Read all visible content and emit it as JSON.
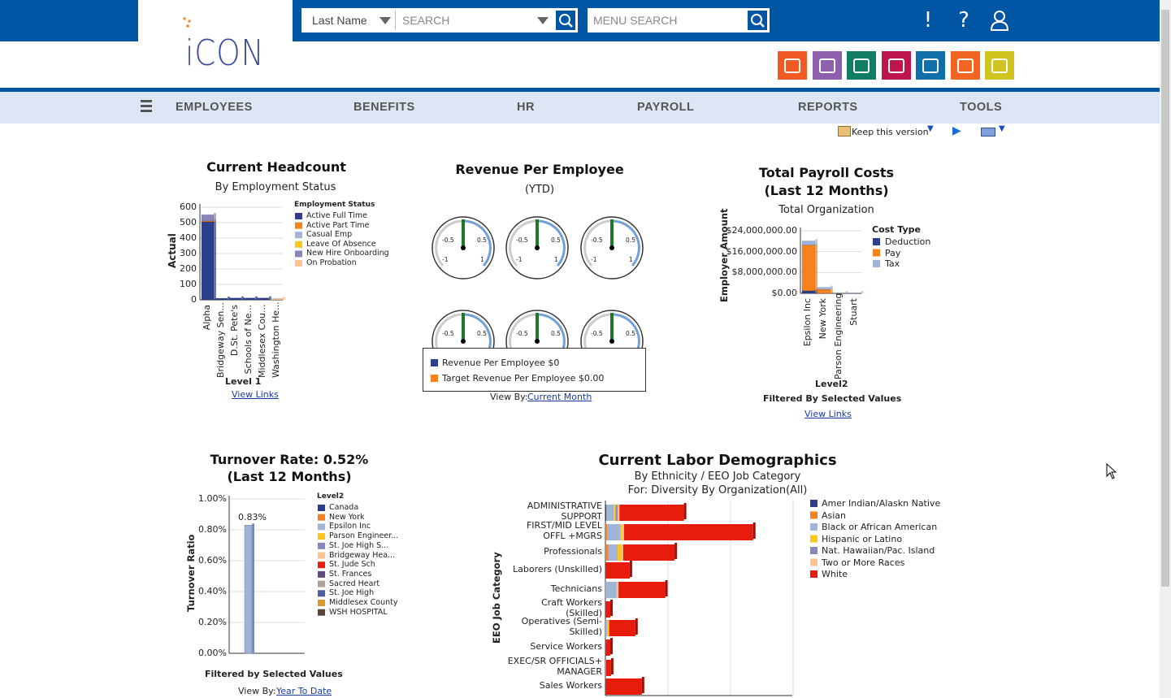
{
  "header": {
    "logo": "iCON",
    "search_type": "Last Name",
    "search_placeholder": "SEARCH",
    "menu_search_placeholder": "MENU SEARCH",
    "icons": [
      "alert-icon",
      "help-icon",
      "user-icon"
    ],
    "apps": [
      {
        "icon": "people-icon",
        "color": "#f15a22"
      },
      {
        "icon": "layers-icon",
        "color": "#8e5fad"
      },
      {
        "icon": "edit-icon",
        "color": "#0f7c64"
      },
      {
        "icon": "checklist-icon",
        "color": "#c0144c"
      },
      {
        "icon": "brain-gears-icon",
        "color": "#0f6fa8"
      },
      {
        "icon": "swoosh-icon",
        "color": "#f26522"
      },
      {
        "icon": "bank-icon",
        "color": "#cfc420"
      }
    ]
  },
  "nav": [
    "EMPLOYEES",
    "BENEFITS",
    "HR",
    "PAYROLL",
    "REPORTS",
    "TOOLS"
  ],
  "toolbar": {
    "keep_version": "Keep this version"
  },
  "headcount": {
    "title": "Current Headcount",
    "subtitle": "By Employment Status",
    "view_links": "View Links",
    "chart_data": {
      "type": "bar",
      "stacked": true,
      "xlabel": "Level 1",
      "ylabel": "Actual",
      "ylim": [
        0,
        600
      ],
      "yticks": [
        "0",
        "100",
        "200",
        "300",
        "400",
        "500",
        "600"
      ],
      "legend_title": "Employment Status",
      "legend": "right",
      "categories": [
        "Alpha",
        "Bridgeway Sen...",
        "D.St. Pete's",
        "Schools of Ne...",
        "Middlesex Cou...",
        "Washington He..."
      ],
      "series": [
        {
          "name": "Active Full Time",
          "color": "#2b3f8c",
          "values": [
            505,
            10,
            12,
            12,
            12,
            0
          ]
        },
        {
          "name": "Active Part Time",
          "color": "#f7821b",
          "values": [
            6,
            0,
            0,
            0,
            0,
            0
          ]
        },
        {
          "name": "Casual Emp",
          "color": "#a0b4d8",
          "values": [
            0,
            0,
            0,
            0,
            0,
            0
          ]
        },
        {
          "name": "Leave Of Absence",
          "color": "#ffc61a",
          "values": [
            0,
            0,
            0,
            0,
            0,
            0
          ]
        },
        {
          "name": "New Hire Onboarding",
          "color": "#8886bb",
          "values": [
            40,
            0,
            0,
            0,
            0,
            0
          ]
        },
        {
          "name": "On Probation",
          "color": "#fcc390",
          "values": [
            0,
            0,
            0,
            0,
            0,
            8
          ]
        }
      ]
    }
  },
  "revenue": {
    "title": "Revenue Per Employee",
    "subtitle": "(YTD)",
    "gauge_labels": [
      "-1",
      "-0.5",
      "0.5",
      "1"
    ],
    "gauge_values": [
      0,
      0,
      0,
      0,
      0,
      0
    ],
    "legend": [
      {
        "label": "Revenue Per Employee $0",
        "color": "#2b3f8c"
      },
      {
        "label": "Target Revenue Per Employee $0.00",
        "color": "#f7821b"
      }
    ],
    "view_by_label": "View By:",
    "view_by_link": "Current Month"
  },
  "payroll": {
    "title1": "Total Payroll Costs",
    "title2": "(Last 12 Months)",
    "subtitle": "Total Organization",
    "filter_note": "Filtered By Selected Values",
    "view_links": "View Links",
    "chart_data": {
      "type": "bar",
      "stacked": true,
      "xlabel": "Level2",
      "ylabel": "Employer Amount",
      "ylim": [
        0,
        24000000
      ],
      "yticks": [
        "$0.00",
        "$8,000,000.00",
        "$16,000,000.00",
        "$24,000,000.00"
      ],
      "legend_title": "Cost Type",
      "legend": "right",
      "categories": [
        "Epsilon Inc",
        "New York",
        "Parson Engineering",
        "Stuart"
      ],
      "series": [
        {
          "name": "Deduction",
          "color": "#2b3f8c",
          "values": [
            1000000,
            0,
            0,
            0
          ]
        },
        {
          "name": "Pay",
          "color": "#f7821b",
          "values": [
            17500000,
            1500000,
            0,
            0
          ]
        },
        {
          "name": "Tax",
          "color": "#a0b4d8",
          "values": [
            1600000,
            800000,
            200000,
            200000
          ]
        }
      ]
    }
  },
  "turnover": {
    "title1": "Turnover Rate: 0.52%",
    "title2": "(Last 12 Months)",
    "filter_note": "Filtered by Selected Values",
    "view_by_label": "View By:",
    "view_by_link": "Year To Date",
    "chart_data": {
      "type": "bar",
      "ylabel": "Turnover Ratio",
      "ylim": [
        0,
        1.0
      ],
      "yticks": [
        "0.00%",
        "0.20%",
        "0.40%",
        "0.60%",
        "0.80%",
        "1.00%"
      ],
      "legend_title": "Level2",
      "legend": "right",
      "categories": [
        "Epsilon Inc"
      ],
      "values": [
        0.83
      ],
      "data_labels": [
        "0.83%"
      ],
      "series_legend": [
        {
          "name": "Canada",
          "color": "#2b3f8c"
        },
        {
          "name": "New York",
          "color": "#f7821b"
        },
        {
          "name": "Epsilon Inc",
          "color": "#a0b4d8"
        },
        {
          "name": "Parson Engineer...",
          "color": "#ffc61a"
        },
        {
          "name": "St. Joe High S...",
          "color": "#8886bb"
        },
        {
          "name": "Bridgeway Hea...",
          "color": "#fcc390"
        },
        {
          "name": "St. Jude Sch",
          "color": "#e81c0c"
        },
        {
          "name": "St. Frances",
          "color": "#5e4a7e"
        },
        {
          "name": "Sacred Heart",
          "color": "#aca396"
        },
        {
          "name": "St. Joe High",
          "color": "#4a5ea0"
        },
        {
          "name": "Middlesex County",
          "color": "#d99a2e"
        },
        {
          "name": "WSH HOSPITAL",
          "color": "#5a4638"
        }
      ]
    }
  },
  "labor": {
    "title": "Current Labor Demographics",
    "subtitle1": "By Ethnicity / EEO Job Category",
    "subtitle2": "For: Diversity By Organization(All)",
    "chart_data": {
      "type": "bar",
      "orientation": "horizontal",
      "stacked": true,
      "ylabel": "EEO Job Category",
      "xlim": [
        0,
        100
      ],
      "legend": "right",
      "categories": [
        "ADMINISTRATIVE SUPPORT",
        "FIRST/MID LEVEL OFFL +MGRS",
        "Professionals",
        "Laborers (Unskilled)",
        "Technicians",
        "Craft Workers (Skilled)",
        "Operatives (Semi-Skilled)",
        "Service Workers",
        "EXEC/SR OFFICIALS+ MANAGER",
        "Sales Workers"
      ],
      "series": [
        {
          "name": "Amer Indian/Alaskn Native",
          "color": "#2b3f8c",
          "values": [
            0.5,
            0,
            0,
            0,
            0,
            0,
            0,
            0.3,
            0,
            0
          ]
        },
        {
          "name": "Asian",
          "color": "#f7821b",
          "values": [
            0,
            1,
            1.5,
            0,
            0,
            0,
            0,
            0,
            0.3,
            0
          ]
        },
        {
          "name": "Black or African American",
          "color": "#a0b4d8",
          "values": [
            4,
            7,
            5,
            0,
            6,
            0,
            1,
            0,
            0,
            0
          ]
        },
        {
          "name": "Hispanic or Latino",
          "color": "#ffc61a",
          "values": [
            1,
            1,
            2,
            0,
            0,
            0,
            1,
            0,
            0,
            0
          ]
        },
        {
          "name": "Nat. Hawaiian/Pac. Island",
          "color": "#8886bb",
          "values": [
            1,
            0,
            0,
            0,
            0,
            0,
            0,
            0,
            0,
            0
          ]
        },
        {
          "name": "Two or More Races",
          "color": "#fcc390",
          "values": [
            1,
            1,
            1,
            0,
            1,
            0,
            0,
            0,
            0,
            0
          ]
        },
        {
          "name": "White",
          "color": "#e81c0c",
          "values": [
            34.5,
            69,
            27.5,
            13,
            25,
            2.6,
            14,
            2.3,
            2.7,
            19.5
          ]
        }
      ]
    }
  }
}
